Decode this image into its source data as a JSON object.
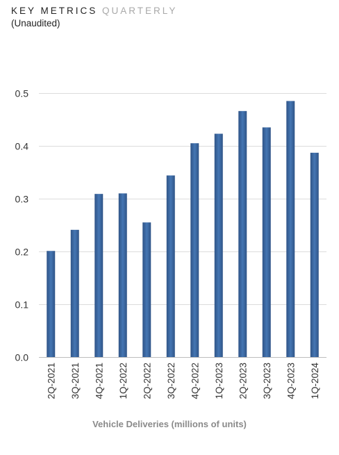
{
  "header": {
    "title_main": "KEY METRICS",
    "title_sub": "QUARTERLY",
    "subtitle": "(Unaudited)"
  },
  "chart_data": {
    "type": "bar",
    "categories": [
      "2Q-2021",
      "3Q-2021",
      "4Q-2021",
      "1Q-2022",
      "2Q-2022",
      "3Q-2022",
      "4Q-2022",
      "1Q-2023",
      "2Q-2023",
      "3Q-2023",
      "4Q-2023",
      "1Q-2024"
    ],
    "values": [
      0.201,
      0.241,
      0.309,
      0.31,
      0.255,
      0.344,
      0.405,
      0.423,
      0.466,
      0.435,
      0.485,
      0.387
    ],
    "yticks": [
      "0.0",
      "0.1",
      "0.2",
      "0.3",
      "0.4",
      "0.5"
    ],
    "ylim": [
      0,
      0.5
    ],
    "xlabel": "Vehicle Deliveries (millions of units)",
    "ylabel": "",
    "grid": true,
    "bar_color": "#3d6aa4"
  }
}
